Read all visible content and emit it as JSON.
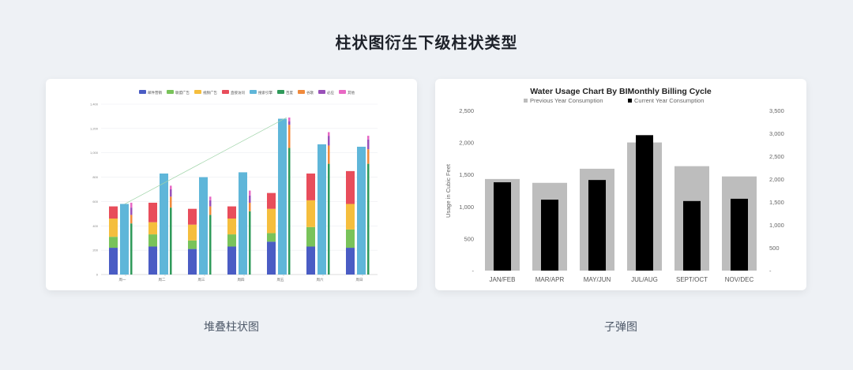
{
  "page": {
    "title": "柱状图衍生下级柱状类型"
  },
  "cards": [
    {
      "caption": "堆叠柱状图"
    },
    {
      "caption": "子弹图"
    }
  ],
  "chart_data": [
    {
      "type": "bar",
      "stacked": true,
      "title": "",
      "categories": [
        "周一",
        "周二",
        "周三",
        "周四",
        "周五",
        "周六",
        "周日"
      ],
      "ylim": [
        0,
        1400
      ],
      "yticks": [
        "0",
        "200",
        "400",
        "600",
        "800",
        "1,000",
        "1,200",
        "1,400"
      ],
      "groups": [
        {
          "series": [
            {
              "name": "邮件营销",
              "color": "#4a5cc4",
              "values": [
                220,
                230,
                210,
                230,
                270,
                230,
                220
              ]
            },
            {
              "name": "联盟广告",
              "color": "#79c35a",
              "values": [
                90,
                100,
                70,
                100,
                70,
                160,
                150
              ]
            },
            {
              "name": "视频广告",
              "color": "#f5be3d",
              "values": [
                150,
                100,
                130,
                130,
                200,
                220,
                210
              ]
            },
            {
              "name": "直接访问",
              "color": "#e84d5b",
              "values": [
                100,
                160,
                130,
                100,
                130,
                220,
                270
              ]
            }
          ]
        },
        {
          "series": [
            {
              "name": "搜索引擎",
              "color": "#5fb6d9",
              "values": [
                580,
                830,
                800,
                840,
                1280,
                1070,
                1050
              ]
            }
          ]
        },
        {
          "width": "thin",
          "series": [
            {
              "name": "百度",
              "color": "#2f9a5a",
              "values": [
                420,
                550,
                490,
                520,
                1040,
                910,
                910
              ]
            },
            {
              "name": "谷歌",
              "color": "#f08a3c",
              "values": [
                70,
                90,
                70,
                70,
                190,
                150,
                120
              ]
            },
            {
              "name": "必应",
              "color": "#9950b8",
              "values": [
                60,
                60,
                50,
                60,
                30,
                80,
                80
              ]
            },
            {
              "name": "其他",
              "color": "#e868c4",
              "values": [
                40,
                30,
                30,
                40,
                30,
                30,
                30
              ]
            }
          ]
        }
      ],
      "trend_line": {
        "from": {
          "category": "周一",
          "value": 580
        },
        "to": {
          "category": "周五",
          "value": 1290
        },
        "color": "#9fd4a8"
      },
      "legend_position": "top",
      "grid": true
    },
    {
      "type": "bar",
      "variant": "bullet",
      "title": "Water Usage Chart By BIMonthly Billing Cycle",
      "categories": [
        "JAN/FEB",
        "MAR/APR",
        "MAY/JUN",
        "JUL/AUG",
        "SEPT/OCT",
        "NOV/DEC"
      ],
      "ylabel": "Usage in Cubic Feet",
      "ylim": [
        0,
        2500
      ],
      "yticks": [
        "-",
        "500",
        "1,000",
        "1,500",
        "2,000",
        "2,500"
      ],
      "y2lim": [
        0,
        3500
      ],
      "y2ticks": [
        "-",
        "500",
        "1,000",
        "1,500",
        "2,000",
        "2,500",
        "3,000",
        "3,500"
      ],
      "series": [
        {
          "name": "Previous Year Consumption",
          "color": "#bdbdbd",
          "axis": "left",
          "values": [
            1430,
            1370,
            1590,
            2000,
            1630,
            1470
          ]
        },
        {
          "name": "Current Year Consumption",
          "color": "#000000",
          "axis": "right",
          "values": [
            1930,
            1550,
            1980,
            2960,
            1520,
            1570
          ]
        }
      ],
      "legend_position": "top",
      "grid": false
    }
  ]
}
